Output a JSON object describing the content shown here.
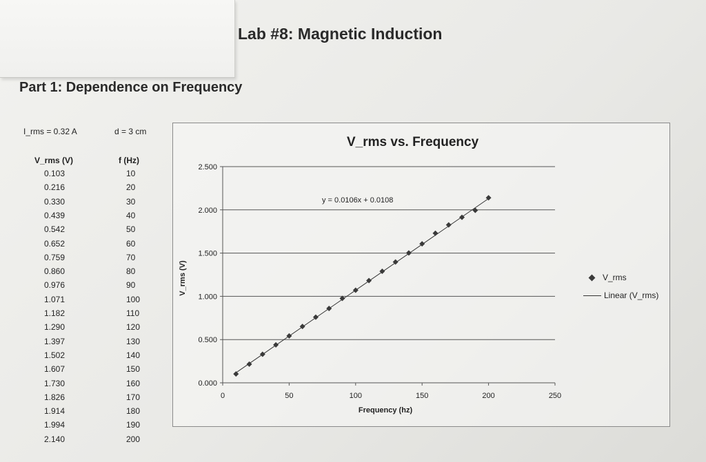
{
  "page": {
    "title": "Lab #8:  Magnetic Induction",
    "part_heading": "Part 1:  Dependence on Frequency",
    "params": {
      "irms": "I_rms = 0.32 A",
      "d": "d = 3 cm"
    }
  },
  "table": {
    "headers": {
      "v": "V_rms (V)",
      "f": "f (Hz)"
    },
    "rows": [
      {
        "v": "0.103",
        "f": "10"
      },
      {
        "v": "0.216",
        "f": "20"
      },
      {
        "v": "0.330",
        "f": "30"
      },
      {
        "v": "0.439",
        "f": "40"
      },
      {
        "v": "0.542",
        "f": "50"
      },
      {
        "v": "0.652",
        "f": "60"
      },
      {
        "v": "0.759",
        "f": "70"
      },
      {
        "v": "0.860",
        "f": "80"
      },
      {
        "v": "0.976",
        "f": "90"
      },
      {
        "v": "1.071",
        "f": "100"
      },
      {
        "v": "1.182",
        "f": "110"
      },
      {
        "v": "1.290",
        "f": "120"
      },
      {
        "v": "1.397",
        "f": "130"
      },
      {
        "v": "1.502",
        "f": "140"
      },
      {
        "v": "1.607",
        "f": "150"
      },
      {
        "v": "1.730",
        "f": "160"
      },
      {
        "v": "1.826",
        "f": "170"
      },
      {
        "v": "1.914",
        "f": "180"
      },
      {
        "v": "1.994",
        "f": "190"
      },
      {
        "v": "2.140",
        "f": "200"
      }
    ]
  },
  "chart_data": {
    "type": "scatter",
    "title": "V_rms vs. Frequency",
    "xlabel": "Frequency (hz)",
    "ylabel": "V_rms (V)",
    "xlim": [
      0,
      250
    ],
    "ylim": [
      0,
      2.5
    ],
    "x_ticks": [
      "0",
      "50",
      "100",
      "150",
      "200",
      "250"
    ],
    "y_ticks": [
      "0.000",
      "0.500",
      "1.000",
      "1.500",
      "2.000",
      "2.500"
    ],
    "gridlines": "horizontal",
    "series": [
      {
        "name": "V_rms",
        "x": [
          10,
          20,
          30,
          40,
          50,
          60,
          70,
          80,
          90,
          100,
          110,
          120,
          130,
          140,
          150,
          160,
          170,
          180,
          190,
          200
        ],
        "values": [
          0.103,
          0.216,
          0.33,
          0.439,
          0.542,
          0.652,
          0.759,
          0.86,
          0.976,
          1.071,
          1.182,
          1.29,
          1.397,
          1.502,
          1.607,
          1.73,
          1.826,
          1.914,
          1.994,
          2.14
        ]
      }
    ],
    "trendline": {
      "name": "Linear (V_rms)",
      "slope": 0.0106,
      "intercept": 0.0108
    },
    "annotation": "y = 0.0106x + 0.0108",
    "legend": [
      "V_rms",
      "Linear (V_rms)"
    ],
    "legend_position": "right",
    "colors": {
      "marker": "#3a3a3a",
      "line": "#333333",
      "grid": "#555555"
    }
  }
}
